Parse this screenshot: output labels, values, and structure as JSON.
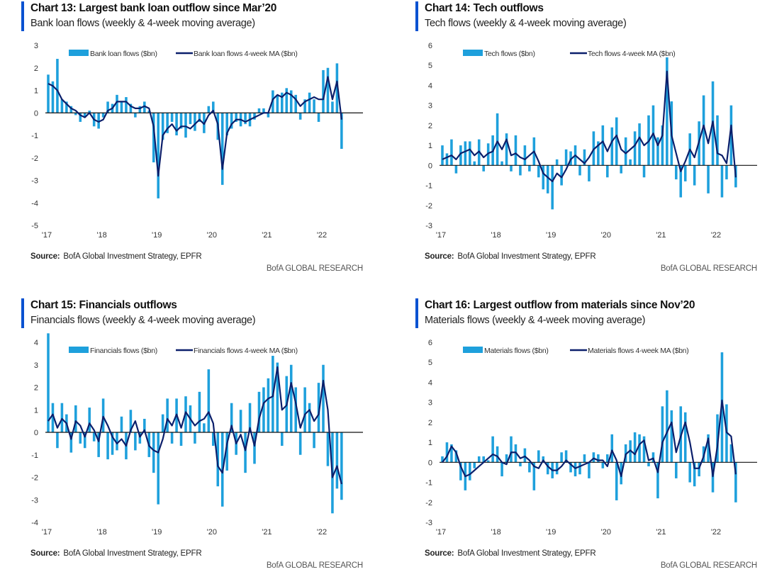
{
  "colors": {
    "bars": "#1ea0dc",
    "ma": "#0b1f6b",
    "accent": "#0a52d1",
    "zero": "#111111"
  },
  "chart_data": [
    {
      "type": "bar+line",
      "title": "Chart 13: Largest bank loan outflow since Mar’20",
      "subtitle": "Bank loan flows (weekly & 4-week moving average)",
      "ylim": [
        -5,
        3
      ],
      "yticks": [
        "3",
        "2",
        "1",
        "0",
        "-1",
        "-2",
        "-3",
        "-4",
        "-5"
      ],
      "xticks": [
        "'17",
        "'18",
        "'19",
        "'20",
        "'21",
        "'22"
      ],
      "legend": [
        "Bank loan flows ($bn)",
        "Bank loan flows 4-week MA ($bn)"
      ],
      "x_start": "Jan 2017",
      "x_step": "month",
      "bars": [
        1.7,
        1.4,
        2.4,
        0.6,
        0.5,
        0.3,
        -0.1,
        -0.4,
        -0.2,
        0.1,
        -0.6,
        -0.7,
        -0.2,
        0.5,
        0.4,
        0.8,
        0.5,
        0.7,
        0.4,
        -0.2,
        0.3,
        0.5,
        0.1,
        -2.2,
        -3.8,
        -1.2,
        -0.9,
        -0.4,
        -1.0,
        -0.7,
        -1.1,
        -0.5,
        -0.8,
        -0.4,
        -0.9,
        0.3,
        0.5,
        -1.2,
        -3.2,
        -1.0,
        -0.7,
        -0.4,
        -0.6,
        -0.5,
        -0.6,
        -0.3,
        0.2,
        0.2,
        -0.2,
        1.0,
        0.8,
        0.9,
        1.1,
        1.0,
        0.8,
        -0.3,
        0.6,
        0.9,
        0.6,
        -0.4,
        1.9,
        2.0,
        0.5,
        2.2,
        -1.6
      ],
      "ma": [
        1.3,
        1.2,
        1.0,
        0.6,
        0.4,
        0.2,
        0.1,
        -0.1,
        -0.2,
        0.0,
        -0.3,
        -0.4,
        -0.3,
        0.1,
        0.2,
        0.5,
        0.5,
        0.5,
        0.3,
        0.2,
        0.2,
        0.3,
        0.2,
        -0.6,
        -2.8,
        -1.0,
        -0.7,
        -0.5,
        -0.8,
        -0.6,
        -0.6,
        -0.7,
        -0.5,
        -0.3,
        -0.5,
        -0.1,
        0.1,
        -0.5,
        -2.5,
        -0.9,
        -0.5,
        -0.3,
        -0.3,
        -0.4,
        -0.3,
        -0.2,
        -0.1,
        0.0,
        0.0,
        0.6,
        0.8,
        0.7,
        0.9,
        0.8,
        0.6,
        0.3,
        0.5,
        0.6,
        0.7,
        0.6,
        0.6,
        1.6,
        0.6,
        1.4,
        -0.3
      ],
      "source_label": "Source:",
      "source": "BofA Global Investment Strategy, EPFR",
      "brand": "BofA GLOBAL RESEARCH"
    },
    {
      "type": "bar+line",
      "title": "Chart 14: Tech outflows",
      "subtitle": "Tech flows (weekly & 4-week moving average)",
      "ylim": [
        -3,
        6
      ],
      "yticks": [
        "6",
        "5",
        "4",
        "3",
        "2",
        "1",
        "0",
        "-1",
        "-2",
        "-3"
      ],
      "xticks": [
        "'17",
        "'18",
        "'19",
        "'20",
        "'21",
        "'22"
      ],
      "legend": [
        "Tech flows ($bn)",
        "Tech flows 4-week MA ($bn)"
      ],
      "x_start": "Jan 2017",
      "x_step": "month",
      "bars": [
        1.0,
        0.6,
        1.3,
        -0.4,
        1.0,
        1.2,
        1.2,
        0.2,
        1.3,
        -0.3,
        1.1,
        1.5,
        2.6,
        0.2,
        1.6,
        -0.3,
        1.5,
        -0.5,
        1.0,
        -0.3,
        1.4,
        -0.6,
        -1.2,
        -1.4,
        -2.2,
        0.3,
        -1.0,
        0.8,
        0.7,
        1.0,
        -0.5,
        0.8,
        -0.8,
        1.7,
        1.2,
        2.0,
        -0.6,
        1.9,
        2.4,
        -0.4,
        1.4,
        0.3,
        1.7,
        2.1,
        -0.6,
        2.5,
        3.0,
        1.4,
        2.0,
        5.4,
        3.2,
        -0.7,
        -1.6,
        -0.8,
        1.6,
        -1.0,
        2.2,
        3.5,
        -1.4,
        4.2,
        2.5,
        -1.6,
        -0.7,
        3.0,
        -1.1
      ],
      "ma": [
        0.3,
        0.4,
        0.5,
        0.3,
        0.6,
        0.7,
        0.8,
        0.5,
        0.7,
        0.4,
        0.6,
        0.7,
        1.2,
        0.8,
        1.3,
        0.5,
        0.6,
        0.4,
        0.3,
        0.5,
        0.7,
        0.2,
        -0.4,
        -0.6,
        -0.8,
        -0.4,
        -0.6,
        -0.2,
        0.3,
        0.5,
        0.3,
        0.1,
        0.4,
        0.8,
        1.0,
        1.2,
        0.7,
        1.2,
        1.5,
        0.8,
        0.6,
        0.8,
        1.0,
        1.4,
        1.0,
        1.2,
        1.6,
        1.0,
        1.5,
        4.7,
        1.5,
        0.6,
        -0.3,
        0.2,
        0.8,
        0.4,
        1.2,
        2.0,
        1.1,
        2.2,
        0.6,
        0.5,
        0.1,
        2.0,
        -0.6
      ],
      "source_label": "Source:",
      "source": "BofA Global Investment Strategy, EPFR",
      "brand": "BofA GLOBAL RESEARCH"
    },
    {
      "type": "bar+line",
      "title": "Chart 15: Financials outflows",
      "subtitle": "Financials flows (weekly & 4-week moving average)",
      "ylim": [
        -4,
        4
      ],
      "yticks": [
        "4",
        "3",
        "2",
        "1",
        "0",
        "-1",
        "-2",
        "-3",
        "-4"
      ],
      "xticks": [
        "'17",
        "'18",
        "'19",
        "'20",
        "'21",
        "'22"
      ],
      "legend": [
        "Financials flows ($bn)",
        "Financials flows 4-week MA ($bn)"
      ],
      "x_start": "Jan 2017",
      "x_step": "month",
      "bars": [
        4.4,
        1.3,
        -0.7,
        1.3,
        0.8,
        -0.9,
        1.2,
        -0.5,
        -0.7,
        1.1,
        -0.4,
        -1.1,
        1.5,
        -1.2,
        -1.0,
        -0.8,
        0.7,
        -1.2,
        1.0,
        -0.8,
        -0.5,
        0.6,
        -1.1,
        -1.8,
        -3.2,
        0.8,
        1.5,
        -0.5,
        1.5,
        -0.6,
        1.6,
        1.2,
        -0.5,
        1.8,
        0.4,
        2.8,
        -0.6,
        -2.4,
        -3.3,
        -1.7,
        1.3,
        -1.0,
        1.0,
        -1.8,
        1.3,
        -1.4,
        1.8,
        2.0,
        2.4,
        3.4,
        3.1,
        -0.6,
        2.5,
        3.0,
        2.0,
        -1.0,
        2.0,
        1.3,
        -0.7,
        2.2,
        3.0,
        -1.5,
        -3.6,
        -2.5,
        -3.0
      ],
      "ma": [
        0.5,
        0.8,
        0.2,
        0.6,
        0.4,
        -0.3,
        0.5,
        0.3,
        -0.2,
        0.4,
        0.1,
        -0.4,
        0.7,
        0.3,
        -0.2,
        -0.5,
        -0.3,
        -0.6,
        0.1,
        0.5,
        -0.2,
        0.1,
        -0.6,
        -0.8,
        -0.9,
        -0.3,
        0.6,
        0.3,
        0.8,
        0.2,
        0.9,
        0.6,
        0.3,
        0.5,
        0.6,
        0.9,
        0.4,
        -1.5,
        -1.8,
        -0.5,
        0.3,
        -0.5,
        -0.1,
        -0.8,
        0.2,
        -0.6,
        0.6,
        1.3,
        1.5,
        1.6,
        2.9,
        1.0,
        1.2,
        2.2,
        1.3,
        0.2,
        0.8,
        1.0,
        0.5,
        0.8,
        2.3,
        1.0,
        -2.0,
        -1.5,
        -2.3
      ],
      "source_label": "Source:",
      "source": "BofA Global Investment Strategy, EPFR",
      "brand": "BofA GLOBAL RESEARCH"
    },
    {
      "type": "bar+line",
      "title": "Chart 16: Largest outflow from materials since Nov’20",
      "subtitle": "Materials flows (weekly & 4-week moving average)",
      "ylim": [
        -3,
        6
      ],
      "yticks": [
        "6",
        "5",
        "4",
        "3",
        "2",
        "1",
        "0",
        "-1",
        "-2",
        "-3"
      ],
      "xticks": [
        "'17",
        "'18",
        "'19",
        "'20",
        "'21",
        "'22"
      ],
      "legend": [
        "Materials flows ($bn)",
        "Materials flows 4-week MA ($bn)"
      ],
      "x_start": "Jan 2017",
      "x_step": "month",
      "bars": [
        0.3,
        1.0,
        0.9,
        0.6,
        -0.9,
        -1.4,
        -0.9,
        -0.3,
        0.3,
        0.3,
        0.1,
        1.3,
        0.8,
        -0.7,
        0.4,
        1.3,
        0.9,
        -0.2,
        0.7,
        -0.5,
        -1.4,
        0.6,
        0.3,
        -0.6,
        -0.8,
        -0.6,
        0.5,
        0.6,
        -0.5,
        -0.7,
        -0.6,
        0.4,
        -0.8,
        0.5,
        0.4,
        -0.3,
        0.4,
        1.4,
        -1.9,
        -1.1,
        0.9,
        1.1,
        1.5,
        1.4,
        1.3,
        -0.2,
        0.5,
        -1.8,
        2.8,
        3.6,
        2.6,
        -0.8,
        2.8,
        2.5,
        -1.0,
        -1.2,
        -0.7,
        0.8,
        1.4,
        -1.5,
        2.4,
        5.5,
        2.9,
        0.9,
        -2.0
      ],
      "ma": [
        0.0,
        0.3,
        0.8,
        0.5,
        -0.2,
        -0.7,
        -0.6,
        -0.4,
        -0.2,
        0.0,
        0.2,
        0.4,
        0.3,
        0.0,
        -0.1,
        0.5,
        0.5,
        0.2,
        0.3,
        0.1,
        -0.2,
        -0.3,
        0.1,
        -0.2,
        -0.4,
        -0.4,
        -0.2,
        0.1,
        -0.1,
        -0.3,
        -0.2,
        -0.1,
        0.0,
        0.2,
        0.1,
        0.1,
        -0.2,
        0.6,
        0.1,
        -0.7,
        0.4,
        0.6,
        0.4,
        0.9,
        1.1,
        0.1,
        0.2,
        -0.5,
        1.0,
        1.5,
        2.0,
        0.5,
        1.3,
        2.0,
        1.0,
        -0.3,
        -0.3,
        0.3,
        1.2,
        -0.7,
        0.8,
        3.1,
        1.5,
        1.3,
        -0.6
      ],
      "source_label": "Source:",
      "source": "BofA Global Investment Strategy, EPFR",
      "brand": "BofA GLOBAL RESEARCH"
    }
  ]
}
